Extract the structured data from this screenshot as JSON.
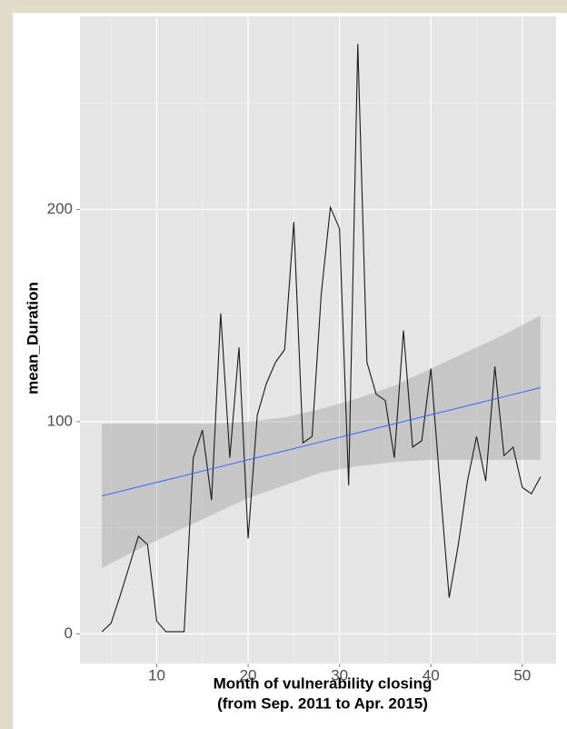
{
  "chart_data": {
    "type": "line",
    "ylabel": "mean_Duration",
    "xlabel": [
      "Month of vulnerability closing",
      "(from Sep. 2011 to Apr. 2015)"
    ],
    "x": [
      4,
      5,
      6,
      7,
      8,
      9,
      10,
      11,
      12,
      13,
      14,
      15,
      16,
      17,
      18,
      19,
      20,
      21,
      22,
      23,
      24,
      25,
      26,
      27,
      28,
      29,
      30,
      31,
      32,
      33,
      34,
      35,
      36,
      37,
      38,
      39,
      40,
      41,
      42,
      43,
      44,
      45,
      46,
      47,
      48,
      49,
      50,
      51,
      52
    ],
    "values": [
      1,
      5,
      18,
      32,
      46,
      42,
      6,
      1,
      1,
      1,
      83,
      96,
      63,
      151,
      83,
      135,
      45,
      103,
      118,
      128,
      134,
      194,
      90,
      93,
      160,
      201,
      191,
      70,
      278,
      128,
      113,
      110,
      83,
      143,
      88,
      91,
      125,
      70,
      17,
      42,
      72,
      93,
      72,
      126,
      84,
      88,
      69,
      66,
      74
    ],
    "color": "#1a1a1a",
    "smooth": {
      "x": [
        4,
        8,
        12,
        16,
        20,
        24,
        28,
        32,
        36,
        40,
        44,
        48,
        52
      ],
      "fit": [
        65,
        69.25,
        73.5,
        77.75,
        82,
        86.25,
        90.5,
        94.75,
        99,
        103.25,
        107.5,
        111.75,
        116
      ],
      "lower": [
        31,
        40,
        48,
        56,
        64,
        70,
        76,
        79,
        81,
        82,
        82,
        82,
        82
      ],
      "upper": [
        99,
        99,
        99,
        99,
        100,
        102,
        106,
        111,
        117,
        125,
        133,
        141,
        150
      ],
      "color": "#3366ff",
      "band_color": "#999999"
    },
    "xlim": [
      1.6,
      53.7
    ],
    "ylim": [
      -14,
      291
    ],
    "xticks": [
      10,
      20,
      30,
      40,
      50
    ],
    "yticks": [
      0,
      100,
      200
    ],
    "grid": true
  }
}
